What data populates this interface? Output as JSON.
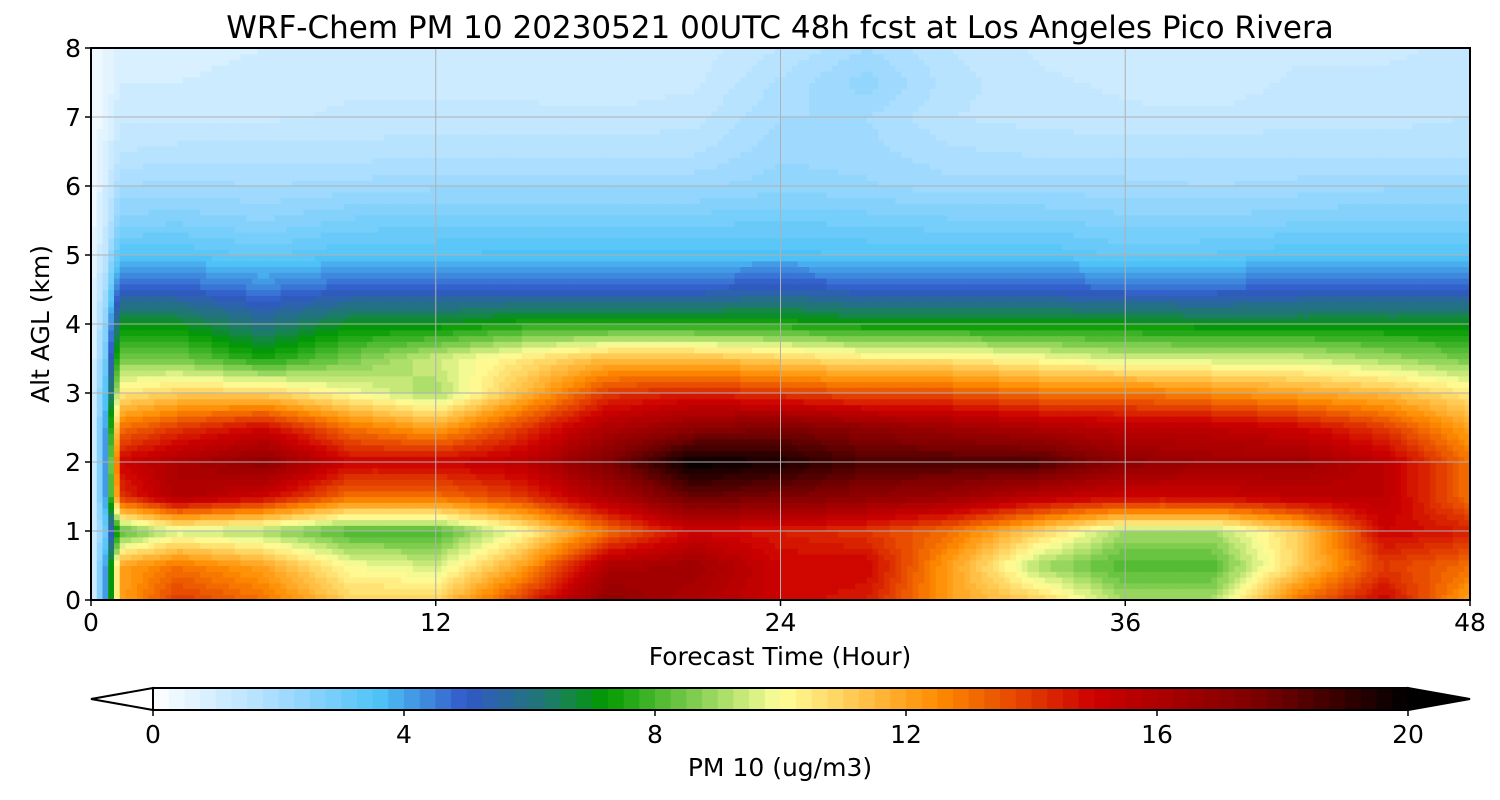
{
  "chart_data": {
    "type": "heatmap",
    "title": "WRF-Chem PM 10  20230521 00UTC 48h fcst at Los Angeles Pico Rivera",
    "xlabel": "Forecast Time (Hour)",
    "ylabel": "Alt AGL (km)",
    "xlim": [
      0,
      48
    ],
    "ylim": [
      0,
      8
    ],
    "x_ticks": [
      0,
      12,
      24,
      36,
      48
    ],
    "y_ticks": [
      0,
      1,
      2,
      3,
      4,
      5,
      6,
      7,
      8
    ],
    "grid": true,
    "x": [
      0,
      0.5,
      1,
      3,
      6,
      9,
      12,
      15,
      18,
      21,
      24,
      27,
      30,
      33,
      36,
      39,
      42,
      45,
      48
    ],
    "y": [
      0,
      0.5,
      1,
      1.5,
      2,
      2.5,
      3,
      3.5,
      4,
      4.5,
      5,
      5.5,
      6,
      6.5,
      7,
      7.5,
      8
    ],
    "z": [
      [
        0.5,
        4,
        12,
        14,
        13,
        11,
        11,
        14,
        17,
        16,
        15,
        14.5,
        12,
        11,
        9,
        9,
        13,
        15,
        12
      ],
      [
        0.5,
        4,
        12,
        13,
        12,
        10,
        9.5,
        12,
        16,
        16.5,
        15,
        15,
        12,
        9,
        8,
        8,
        11,
        14,
        13
      ],
      [
        0.5,
        3,
        8,
        9.5,
        9,
        8,
        8,
        10,
        13,
        15,
        14.5,
        14,
        13,
        11,
        9,
        9,
        11,
        15,
        14.5
      ],
      [
        0.5,
        4,
        14,
        16,
        15,
        13,
        13,
        14,
        16,
        18,
        17.5,
        17,
        16.5,
        15.5,
        15,
        15,
        15.5,
        15.5,
        13
      ],
      [
        0.5,
        4,
        15,
        16,
        17,
        15,
        15,
        15.5,
        17.5,
        20,
        19.5,
        18.5,
        18.5,
        18.5,
        17,
        16.5,
        16.5,
        15.5,
        13
      ],
      [
        0.5,
        4,
        13,
        14,
        15,
        13,
        12,
        14,
        16,
        17,
        17.5,
        17,
        16.5,
        16,
        15.5,
        15.5,
        15,
        14,
        12
      ],
      [
        0.5,
        3.5,
        10.5,
        11,
        11,
        10,
        9,
        11.5,
        14,
        14.5,
        14,
        13.5,
        13.5,
        13,
        13,
        12.5,
        12,
        11.5,
        10.5
      ],
      [
        0.5,
        3,
        8.5,
        8.5,
        7.5,
        8.5,
        9.5,
        10.5,
        11.5,
        11.5,
        11,
        10.5,
        10.5,
        10,
        9.5,
        9.5,
        9.5,
        9,
        8.5
      ],
      [
        0.5,
        2.5,
        7,
        7,
        6,
        7,
        7,
        7.5,
        7.5,
        7.5,
        7.5,
        7.2,
        7.2,
        7.2,
        7.2,
        7,
        7,
        7,
        7
      ],
      [
        0.5,
        2,
        5,
        5,
        4.5,
        5,
        5,
        5,
        5,
        5,
        5.3,
        5,
        5,
        5,
        4.8,
        4.8,
        5,
        5,
        5
      ],
      [
        0.4,
        1.5,
        3.5,
        3.5,
        3.2,
        3.5,
        3.5,
        3.6,
        3.6,
        3.6,
        3.6,
        3.5,
        3.5,
        3.5,
        3.2,
        3.3,
        3.5,
        3.5,
        3.5
      ],
      [
        0.3,
        1.2,
        2.6,
        2.7,
        2.5,
        2.8,
        2.9,
        2.9,
        2.9,
        2.9,
        3,
        2.9,
        2.8,
        2.8,
        2.6,
        2.6,
        2.7,
        2.8,
        2.8
      ],
      [
        0.3,
        1,
        2,
        2.1,
        2,
        2.1,
        2.2,
        2.2,
        2.2,
        2.2,
        2.4,
        2.3,
        2.1,
        2.1,
        2.1,
        2,
        2.1,
        2.2,
        2.2
      ],
      [
        0.3,
        0.8,
        1.5,
        1.6,
        1.6,
        1.6,
        1.7,
        1.7,
        1.7,
        1.7,
        2.2,
        2.1,
        1.8,
        1.7,
        1.7,
        1.7,
        1.7,
        1.7,
        1.7
      ],
      [
        0.2,
        0.6,
        1.2,
        1.2,
        1.2,
        1.3,
        1.3,
        1.3,
        1.3,
        1.4,
        2,
        2,
        1.5,
        1.4,
        1.3,
        1.3,
        1.4,
        1.4,
        1.5
      ],
      [
        0.2,
        0.5,
        1,
        1,
        1.1,
        1.2,
        1.2,
        1.2,
        1.1,
        1.2,
        1.8,
        2.4,
        1.6,
        1.3,
        1.2,
        1.1,
        1.3,
        1.3,
        1.4
      ],
      [
        0.2,
        0.5,
        0.8,
        0.9,
        1,
        1.1,
        1.1,
        1.1,
        1,
        1.1,
        1.5,
        2,
        1.5,
        1.2,
        1.1,
        1.1,
        1.2,
        1.2,
        1.3
      ]
    ],
    "colorbar": {
      "label": "PM 10  (ug/m3)",
      "min": 0,
      "max": 20,
      "ticks": [
        0,
        4,
        8,
        12,
        16,
        20
      ],
      "extend": "both",
      "colors": [
        {
          "v": 0,
          "c": "#ffffff"
        },
        {
          "v": 2,
          "c": "#a6dcff"
        },
        {
          "v": 3.6,
          "c": "#4fc3f7"
        },
        {
          "v": 5,
          "c": "#3158c8"
        },
        {
          "v": 6.3,
          "c": "#1f7a6e"
        },
        {
          "v": 7.2,
          "c": "#009a00"
        },
        {
          "v": 8.8,
          "c": "#8fd35a"
        },
        {
          "v": 10,
          "c": "#ffff9a"
        },
        {
          "v": 12.5,
          "c": "#ff8c00"
        },
        {
          "v": 15,
          "c": "#cc0000"
        },
        {
          "v": 17.5,
          "c": "#800000"
        },
        {
          "v": 20,
          "c": "#000000"
        }
      ],
      "under_color": "#ffffff",
      "over_color": "#000000"
    }
  }
}
